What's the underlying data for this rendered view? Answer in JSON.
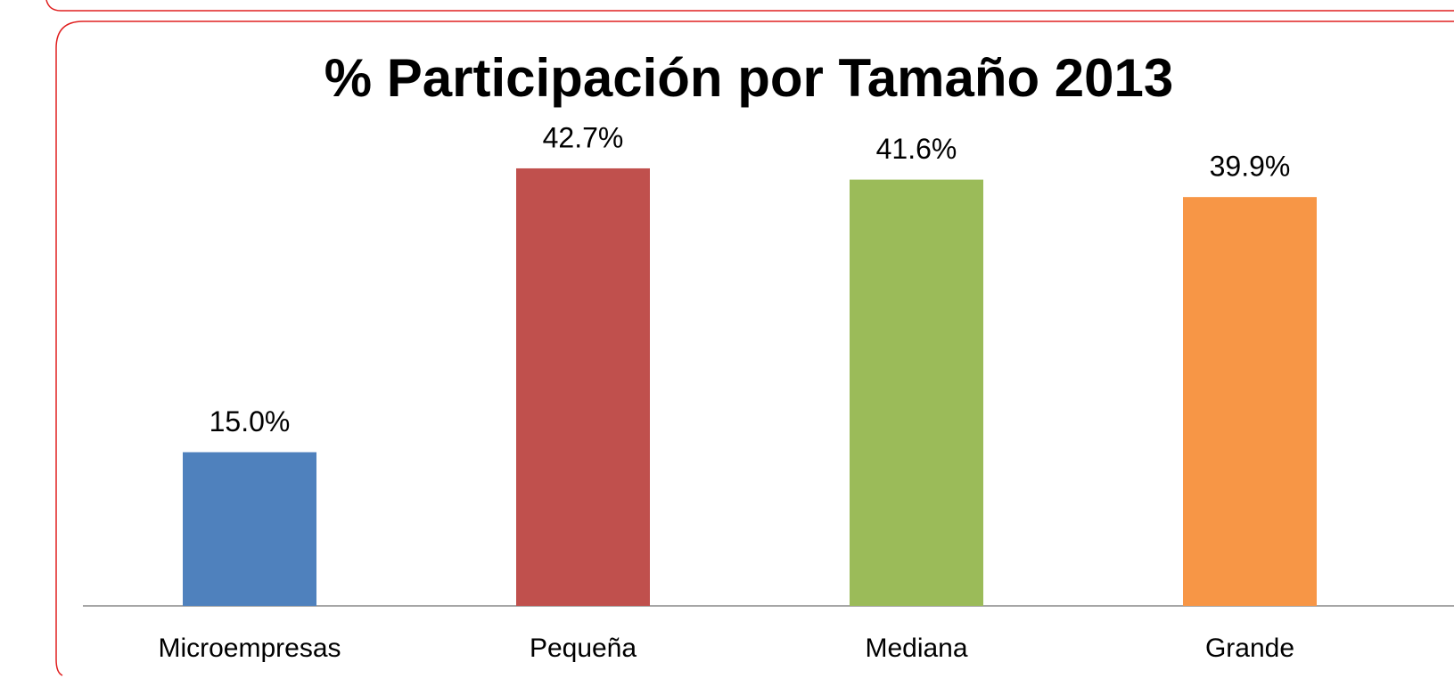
{
  "chart_data": {
    "type": "bar",
    "title": "% Participación por Tamaño 2013",
    "categories": [
      "Microempresas",
      "Pequeña",
      "Mediana",
      "Grande"
    ],
    "values": [
      15.0,
      42.7,
      41.6,
      39.9
    ],
    "value_labels": [
      "15.0%",
      "42.7%",
      "41.6%",
      "39.9%"
    ],
    "colors": [
      "#4f81bd",
      "#c0504d",
      "#9bbb59",
      "#f79646"
    ]
  }
}
